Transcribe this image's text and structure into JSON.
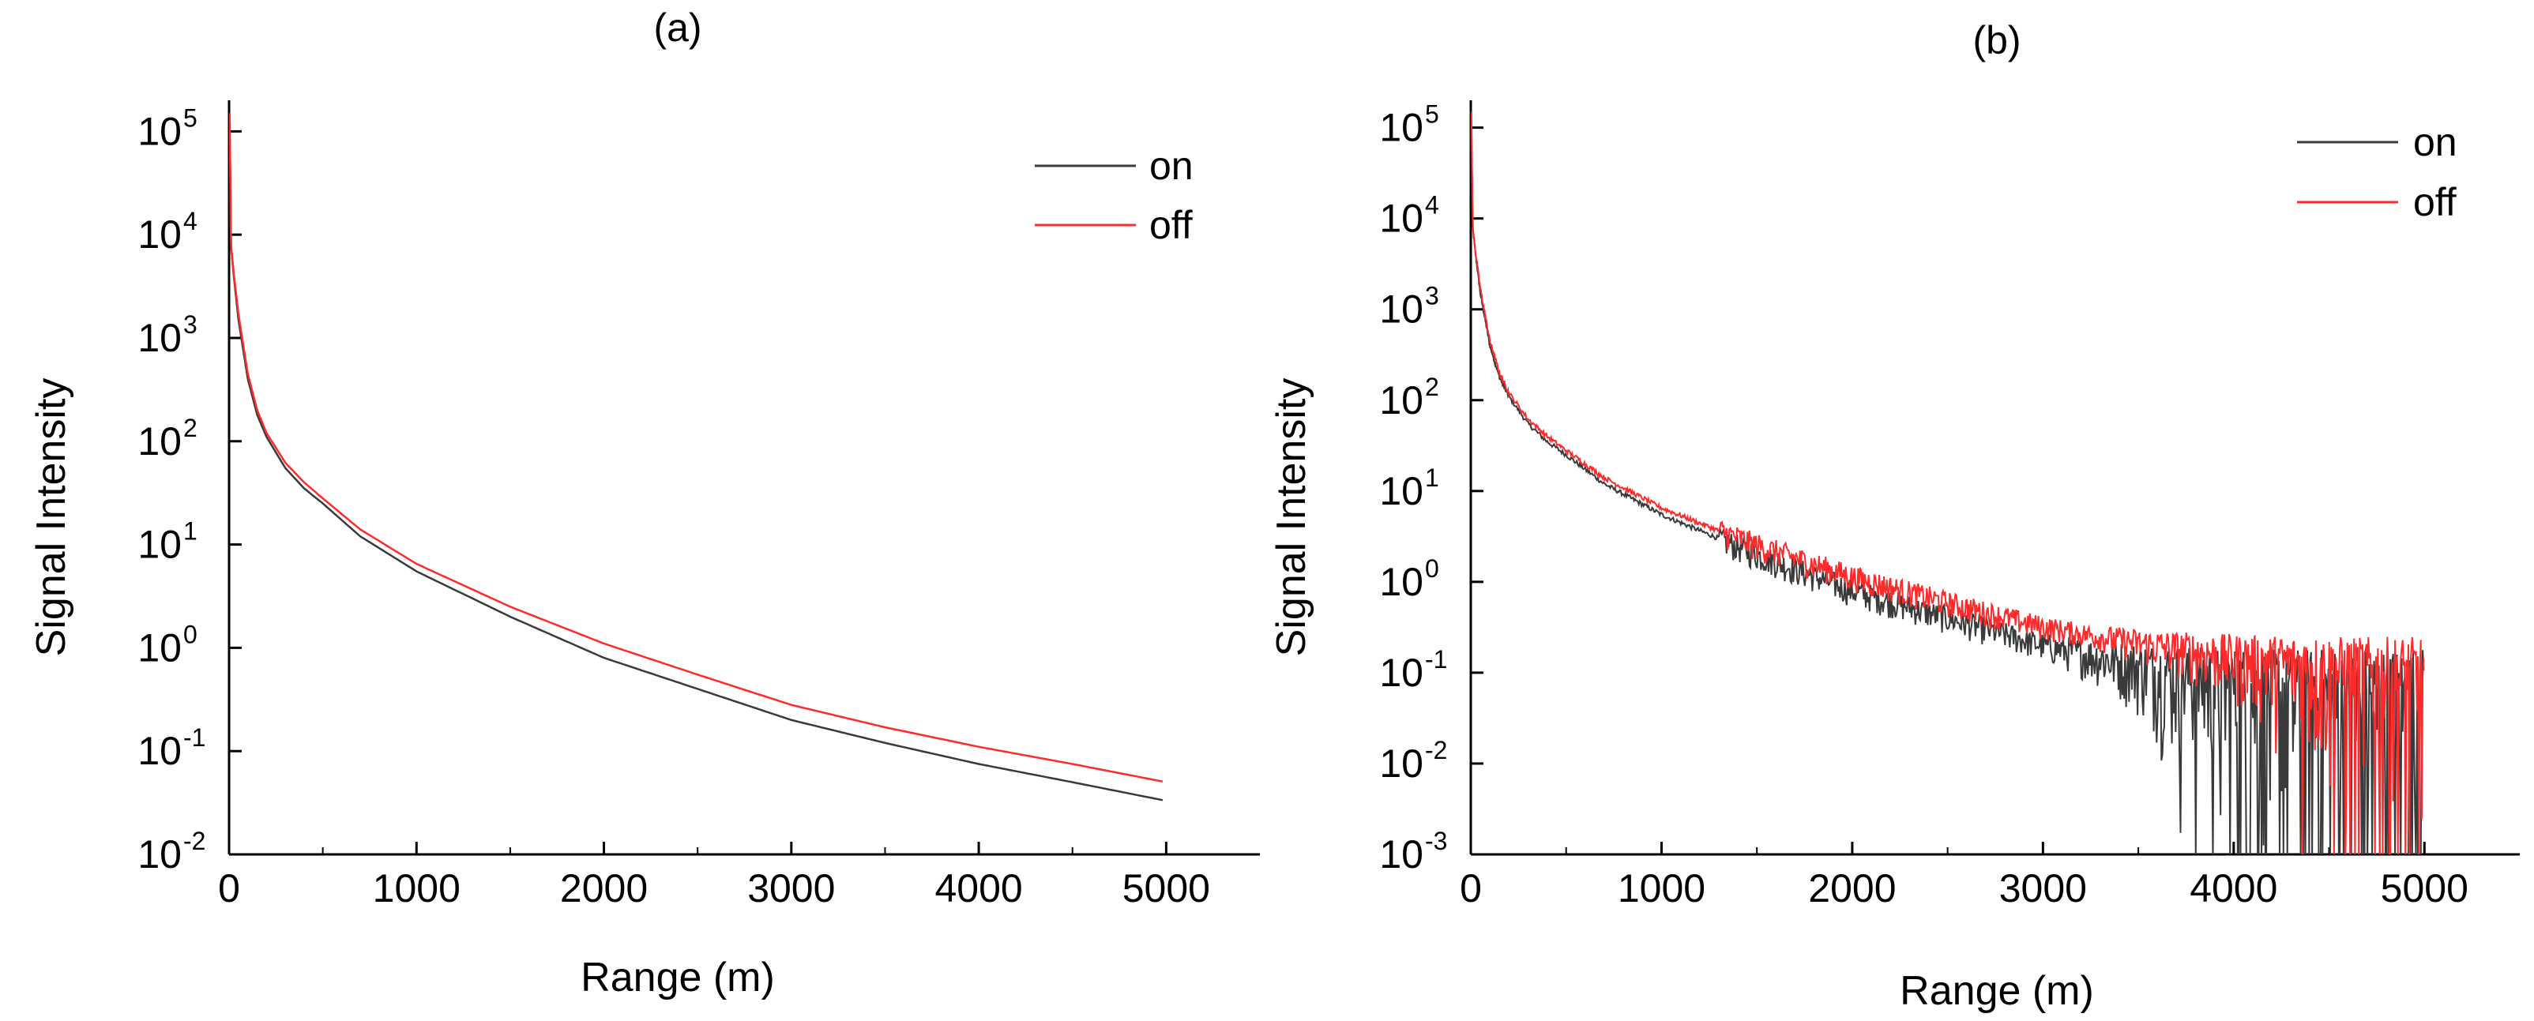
{
  "chart_data": [
    {
      "type": "line",
      "title": "(a)",
      "xlabel": "Range (m)",
      "ylabel": "Signal Intensity",
      "xlim": [
        0,
        5500
      ],
      "ylim": [
        0.01,
        200000
      ],
      "yscale": "log",
      "x_ticks": [
        0,
        1000,
        2000,
        3000,
        4000,
        5000
      ],
      "y_ticks": [
        {
          "value": 0.01,
          "base": "10",
          "exp": "-2"
        },
        {
          "value": 0.1,
          "base": "10",
          "exp": "-1"
        },
        {
          "value": 1,
          "base": "10",
          "exp": "0"
        },
        {
          "value": 10,
          "base": "10",
          "exp": "1"
        },
        {
          "value": 100,
          "base": "10",
          "exp": "2"
        },
        {
          "value": 1000,
          "base": "10",
          "exp": "3"
        },
        {
          "value": 10000,
          "base": "10",
          "exp": "4"
        },
        {
          "value": 100000,
          "base": "10",
          "exp": "5"
        }
      ],
      "legend_position": "top-right",
      "noisy": false,
      "series": [
        {
          "name": "on",
          "color": "#3a3a3a",
          "x": [
            3,
            10,
            25,
            50,
            100,
            150,
            200,
            300,
            400,
            500,
            700,
            1000,
            1500,
            2000,
            2500,
            3000,
            3500,
            4000,
            4500,
            5000
          ],
          "y": [
            150000,
            8000,
            4000,
            1500,
            400,
            180,
            110,
            55,
            35,
            25,
            12,
            5.5,
            2,
            0.8,
            0.4,
            0.2,
            0.12,
            0.075,
            0.05,
            0.033
          ]
        },
        {
          "name": "off",
          "color": "#ff2a2a",
          "x": [
            3,
            10,
            25,
            50,
            100,
            150,
            200,
            300,
            400,
            500,
            700,
            1000,
            1500,
            2000,
            2500,
            3000,
            3500,
            4000,
            4500,
            5000
          ],
          "y": [
            150000,
            8000,
            4200,
            1700,
            450,
            200,
            120,
            62,
            40,
            28,
            14,
            6.5,
            2.5,
            1.1,
            0.55,
            0.28,
            0.17,
            0.11,
            0.075,
            0.05
          ]
        }
      ]
    },
    {
      "type": "line",
      "title": "(b)",
      "xlabel": "Range (m)",
      "ylabel": "Signal Intensity",
      "xlim": [
        0,
        5500
      ],
      "ylim": [
        0.001,
        200000
      ],
      "yscale": "log",
      "x_ticks": [
        0,
        1000,
        2000,
        3000,
        4000,
        5000
      ],
      "y_ticks": [
        {
          "value": 0.001,
          "base": "10",
          "exp": "-3"
        },
        {
          "value": 0.01,
          "base": "10",
          "exp": "-2"
        },
        {
          "value": 0.1,
          "base": "10",
          "exp": "-1"
        },
        {
          "value": 1,
          "base": "10",
          "exp": "0"
        },
        {
          "value": 10,
          "base": "10",
          "exp": "1"
        },
        {
          "value": 100,
          "base": "10",
          "exp": "2"
        },
        {
          "value": 1000,
          "base": "10",
          "exp": "3"
        },
        {
          "value": 10000,
          "base": "10",
          "exp": "4"
        },
        {
          "value": 100000,
          "base": "10",
          "exp": "5"
        }
      ],
      "legend_position": "top-right",
      "noisy": true,
      "noise_floor": 0.12,
      "series": [
        {
          "name": "on",
          "color": "#3a3a3a",
          "x": [
            3,
            10,
            25,
            50,
            100,
            150,
            200,
            300,
            400,
            500,
            700,
            1000,
            1500,
            2000,
            2500,
            3000,
            3500,
            4000,
            4500,
            5000
          ],
          "y": [
            150000,
            8000,
            4000,
            1500,
            400,
            180,
            110,
            55,
            35,
            25,
            12,
            5.5,
            2,
            0.8,
            0.4,
            0.2,
            0.12,
            0.075,
            0.05,
            0.033
          ]
        },
        {
          "name": "off",
          "color": "#ff2a2a",
          "x": [
            3,
            10,
            25,
            50,
            100,
            150,
            200,
            300,
            400,
            500,
            700,
            1000,
            1500,
            2000,
            2500,
            3000,
            3500,
            4000,
            4500,
            5000
          ],
          "y": [
            150000,
            8000,
            4200,
            1700,
            450,
            200,
            120,
            62,
            40,
            28,
            14,
            6.5,
            2.5,
            1.1,
            0.55,
            0.28,
            0.17,
            0.11,
            0.075,
            0.05
          ]
        }
      ]
    }
  ]
}
